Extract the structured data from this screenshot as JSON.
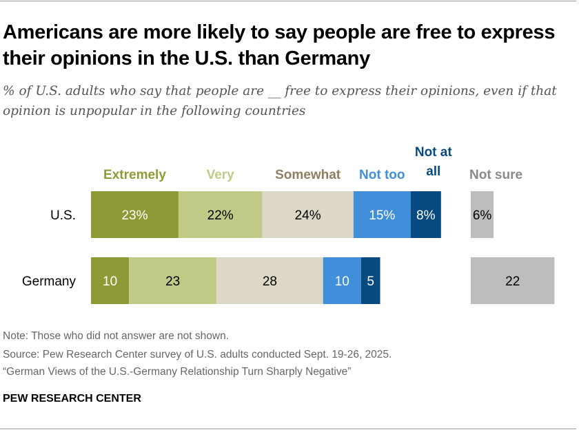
{
  "title": "Americans are more likely to say people are free to express their opinions in the U.S. than Germany",
  "subtitle": "% of U.S. adults who say that people are __ free to express their opinions, even if that opinion is unpopular in the following countries",
  "chart_data": {
    "type": "bar",
    "orientation": "horizontal-stacked",
    "categories": [
      "U.S.",
      "Germany"
    ],
    "series": [
      {
        "name": "Extremely",
        "values": [
          23,
          10
        ],
        "labels": [
          "23%",
          "10"
        ],
        "color": "#8f9a36",
        "label_color": "#8f9a36",
        "text_color": "#ffffff"
      },
      {
        "name": "Very",
        "values": [
          22,
          23
        ],
        "labels": [
          "22%",
          "23"
        ],
        "color": "#c1ca86",
        "label_color": "#c1ca86",
        "text_color": "#000000"
      },
      {
        "name": "Somewhat",
        "values": [
          24,
          28
        ],
        "labels": [
          "24%",
          "28"
        ],
        "color": "#ddd8c6",
        "label_color": "#8c8060",
        "text_color": "#000000"
      },
      {
        "name": "Not too",
        "values": [
          15,
          10
        ],
        "labels": [
          "15%",
          "10"
        ],
        "color": "#418fda",
        "label_color": "#418fda",
        "text_color": "#ffffff"
      },
      {
        "name": "Not at all",
        "values": [
          8,
          5
        ],
        "labels": [
          "8%",
          "5"
        ],
        "color": "#074a82",
        "label_color": "#074a82",
        "text_color": "#ffffff"
      }
    ],
    "separate_series": {
      "name": "Not sure",
      "values": [
        6,
        22
      ],
      "labels": [
        "6%",
        "22"
      ],
      "color": "#bdbdbd",
      "label_color": "#8a8a8a",
      "text_color": "#000000"
    },
    "grid": false,
    "legend": "top"
  },
  "notes": {
    "note": "Note: Those who did not answer are not shown.",
    "source": "Source: Pew Research Center survey of U.S. adults conducted Sept. 19-26, 2025.",
    "report": "“German Views of the U.S.-Germany Relationship Turn Sharply Negative”"
  },
  "brand": "PEW RESEARCH CENTER"
}
